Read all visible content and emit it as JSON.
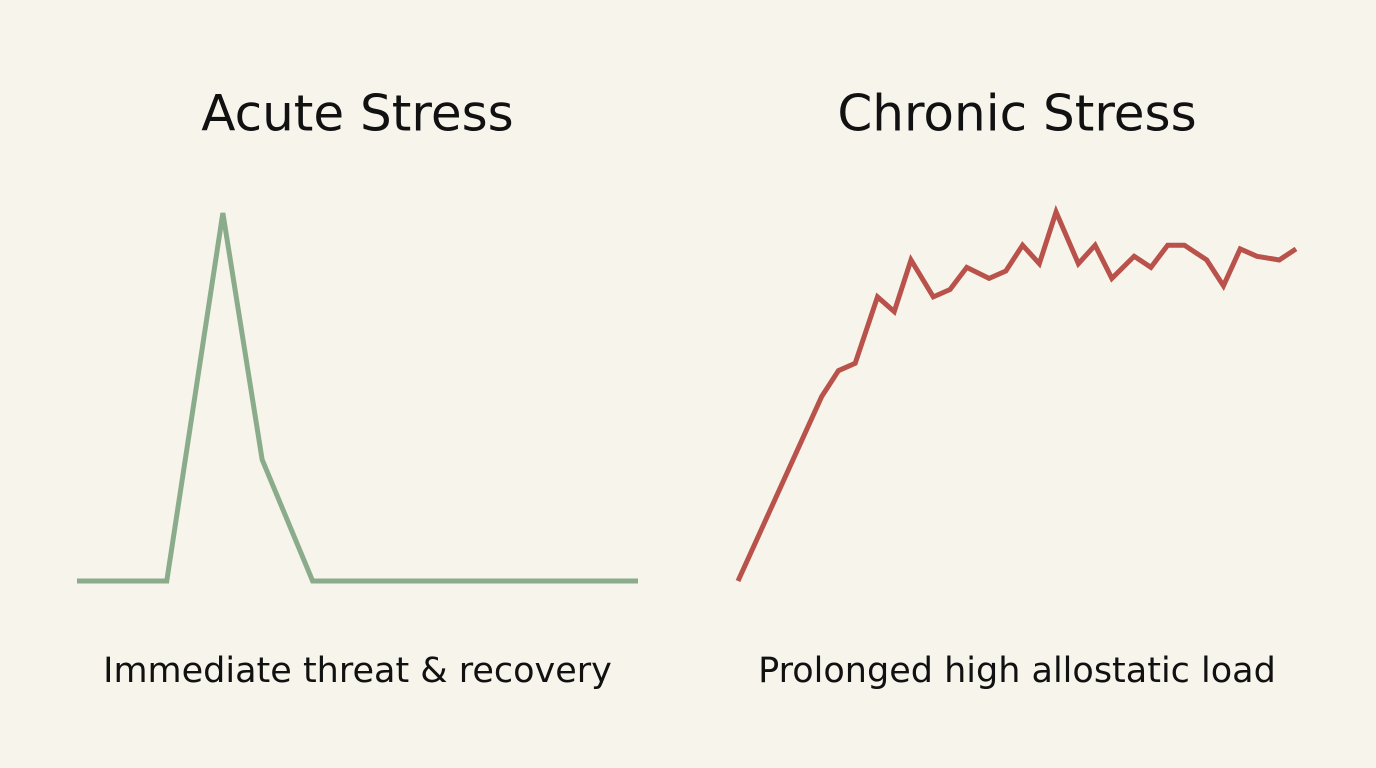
{
  "chart_data": [
    {
      "type": "line",
      "title": "Acute Stress",
      "caption": "Immediate threat & recovery",
      "x": [
        0,
        16,
        26,
        33,
        42,
        100
      ],
      "values": [
        0,
        0,
        100,
        33,
        0,
        0
      ],
      "color": "#8aac8b",
      "xlim": [
        0,
        100
      ],
      "ylim": [
        0,
        100
      ]
    },
    {
      "type": "line",
      "title": "Chronic Stress",
      "caption": "Prolonged high allostatic load",
      "x": [
        0,
        15,
        18,
        21,
        25,
        28,
        31,
        35,
        38,
        41,
        45,
        48,
        51,
        54,
        57,
        61,
        64,
        67,
        71,
        74,
        77,
        80,
        84,
        87,
        90,
        93,
        97,
        100
      ],
      "values": [
        0,
        50,
        57,
        59,
        77,
        73,
        87,
        77,
        79,
        85,
        82,
        84,
        91,
        86,
        100,
        86,
        91,
        82,
        88,
        85,
        91,
        91,
        87,
        80,
        90,
        88,
        87,
        90
      ],
      "color": "#b8524a",
      "xlim": [
        0,
        100
      ],
      "ylim": [
        0,
        100
      ]
    }
  ]
}
